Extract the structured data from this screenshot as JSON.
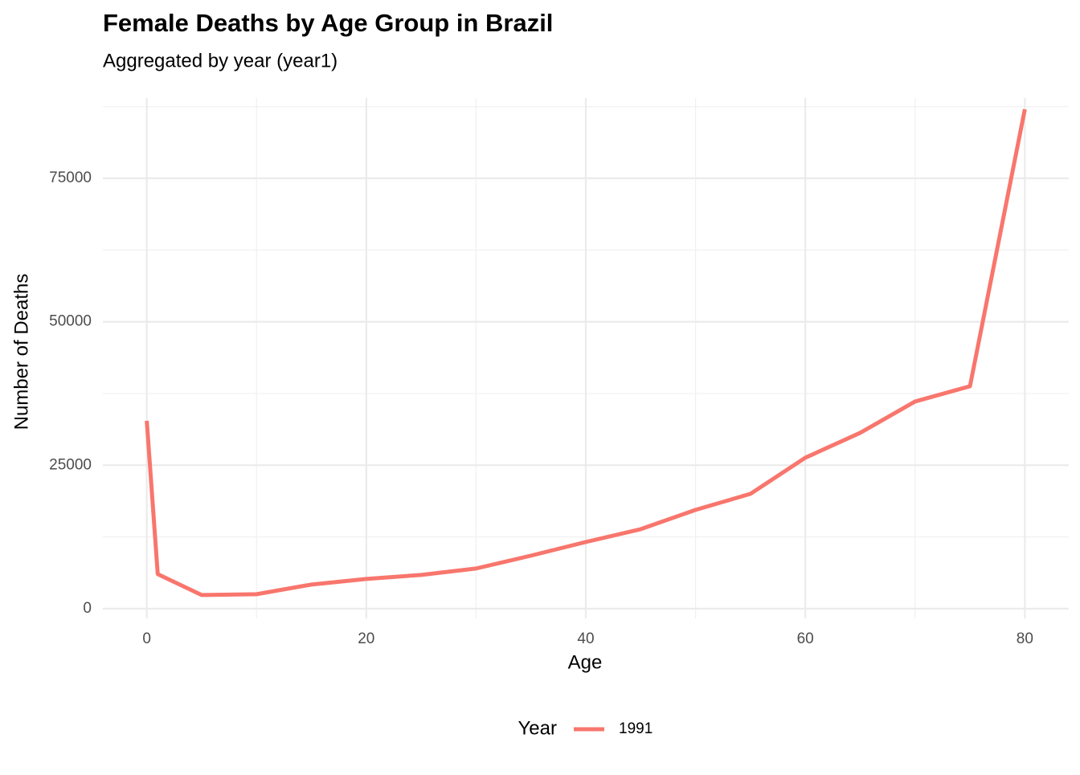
{
  "chart_data": {
    "type": "line",
    "title": "Female Deaths by Age Group in Brazil",
    "subtitle": "Aggregated by year (year1)",
    "x_label": "Age",
    "y_label": "Number of Deaths",
    "legend_title": "Year",
    "legend_position": "bottom",
    "grid": true,
    "x": [
      0,
      1,
      5,
      10,
      15,
      20,
      25,
      30,
      35,
      40,
      45,
      50,
      55,
      60,
      65,
      70,
      75,
      80
    ],
    "series": [
      {
        "name": "1991",
        "color": "#f8766d",
        "values": [
          32740,
          6017,
          2379,
          2519,
          4198,
          5177,
          5877,
          6996,
          9235,
          11613,
          13852,
          17210,
          20009,
          26305,
          30643,
          36099,
          38758,
          87030
        ]
      }
    ],
    "xlim": [
      -4,
      84
    ],
    "ylim": [
      -1700,
      89000
    ],
    "xticks": [
      0,
      20,
      40,
      60,
      80
    ],
    "yticks": [
      0,
      25000,
      50000,
      75000
    ],
    "x_minor_ticks": [
      10,
      30,
      50,
      70
    ],
    "y_minor_ticks": [
      12500,
      37500,
      62500,
      87500
    ]
  }
}
